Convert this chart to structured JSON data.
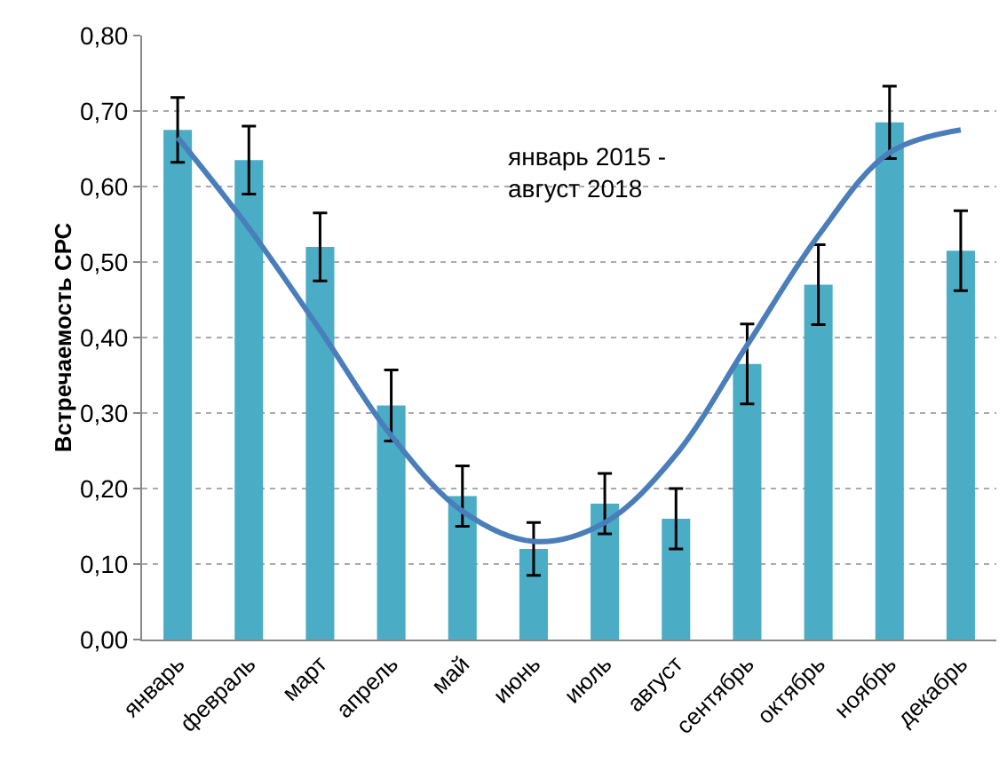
{
  "chart_data": {
    "type": "bar",
    "ylabel": "Встречаемость СРС",
    "categories": [
      "январь",
      "февраль",
      "март",
      "апрель",
      "май",
      "июнь",
      "июль",
      "август",
      "сентябрь",
      "октябрь",
      "ноябрь",
      "декабрь"
    ],
    "series": [
      {
        "color": "#4bacc6",
        "values": [
          0.675,
          0.635,
          0.52,
          0.31,
          0.19,
          0.12,
          0.18,
          0.16,
          0.365,
          0.47,
          0.685,
          0.515
        ],
        "errors": [
          0.043,
          0.045,
          0.045,
          0.047,
          0.04,
          0.035,
          0.04,
          0.04,
          0.053,
          0.053,
          0.048,
          0.053
        ]
      },
      {
        "type": "line",
        "color": "#4a7ebb",
        "values": [
          0.665,
          0.545,
          0.41,
          0.27,
          0.17,
          0.13,
          0.155,
          0.245,
          0.39,
          0.535,
          0.645,
          0.675
        ]
      }
    ],
    "ylim": [
      0,
      0.8
    ],
    "yticks": [
      {
        "value": 0,
        "label": "0,00"
      },
      {
        "value": 0.1,
        "label": "0,10"
      },
      {
        "value": 0.2,
        "label": "0,20"
      },
      {
        "value": 0.3,
        "label": "0,30"
      },
      {
        "value": 0.4,
        "label": "0,40"
      },
      {
        "value": 0.5,
        "label": "0,50"
      },
      {
        "value": 0.6,
        "label": "0,60"
      },
      {
        "value": 0.7,
        "label": "0,70"
      },
      {
        "value": 0.8,
        "label": "0,80"
      }
    ],
    "grid": "y",
    "marker": "none",
    "line_style": "solid",
    "annotations": [
      "январь 2015 -\nавгуст 2018"
    ]
  }
}
